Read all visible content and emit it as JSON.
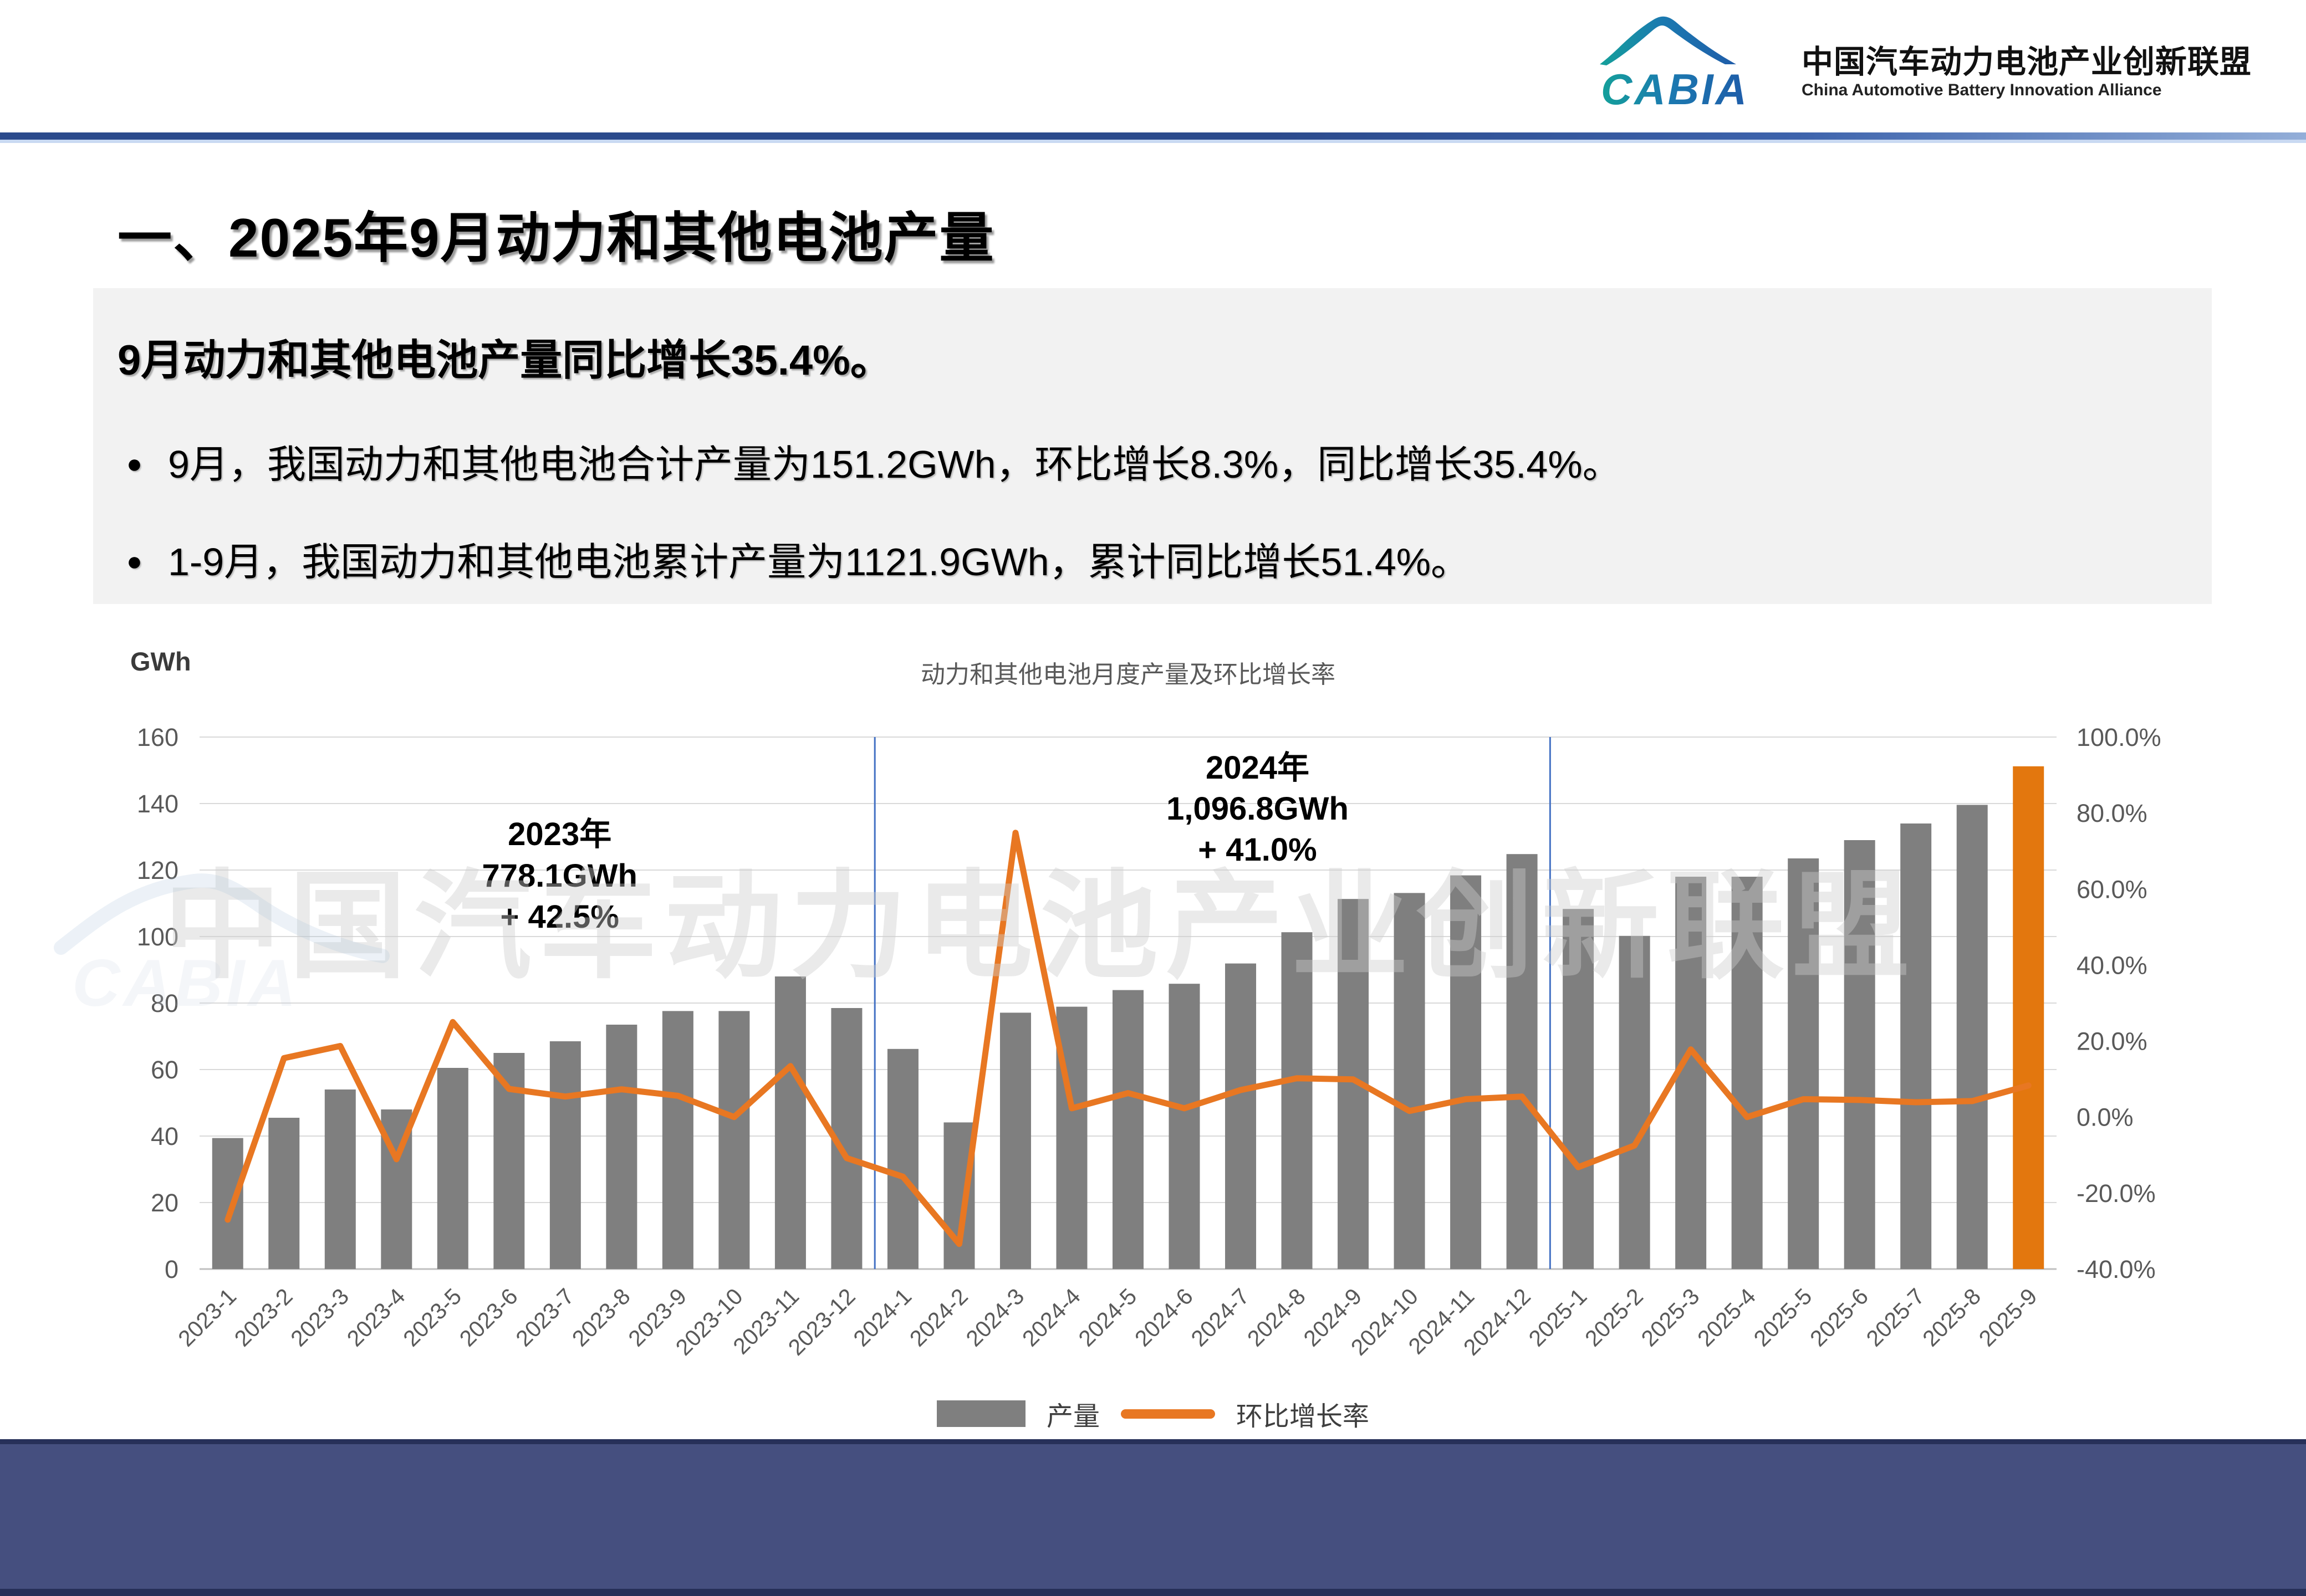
{
  "header": {
    "logo_text": "CABIA",
    "org_name_cn": "中国汽车动力电池产业创新联盟",
    "org_name_en": "China Automotive Battery Innovation Alliance"
  },
  "slide": {
    "section_title": "一、2025年9月动力和其他电池产量",
    "summary_heading": "9月动力和其他电池产量同比增长35.4%。",
    "bullet_marker": "●",
    "bullets": [
      "9月，我国动力和其他电池合计产量为151.2GWh，环比增长8.3%，同比增长35.4%。",
      "1-9月，我国动力和其他电池累计产量为1121.9GWh，累计同比增长51.4%。"
    ]
  },
  "chart_data": {
    "type": "bar+line",
    "title": "动力和其他电池月度产量及环比增长率",
    "unit_label": "GWh",
    "categories": [
      "2023-1",
      "2023-2",
      "2023-3",
      "2023-4",
      "2023-5",
      "2023-6",
      "2023-7",
      "2023-8",
      "2023-9",
      "2023-10",
      "2023-11",
      "2023-12",
      "2024-1",
      "2024-2",
      "2024-3",
      "2024-4",
      "2024-5",
      "2024-6",
      "2024-7",
      "2024-8",
      "2024-9",
      "2024-10",
      "2024-11",
      "2024-12",
      "2025-1",
      "2025-2",
      "2025-3",
      "2025-4",
      "2025-5",
      "2025-6",
      "2025-7",
      "2025-8",
      "2025-9"
    ],
    "series": [
      {
        "name": "产量",
        "type": "bar",
        "axis": "left",
        "unit": "GWh",
        "values": [
          39.4,
          45.5,
          54.0,
          48.0,
          60.5,
          65.0,
          68.5,
          73.5,
          77.6,
          77.6,
          88.0,
          78.5,
          66.2,
          44.1,
          77.1,
          78.9,
          83.9,
          85.8,
          91.9,
          101.3,
          111.3,
          113.1,
          118.4,
          124.8,
          108.3,
          100.2,
          118.0,
          118.0,
          123.5,
          129.0,
          134.0,
          139.6,
          151.2
        ]
      },
      {
        "name": "环比增长率",
        "type": "line",
        "axis": "right",
        "unit": "%",
        "values": [
          -27.0,
          15.5,
          18.7,
          -11.1,
          25.0,
          7.4,
          5.4,
          7.3,
          5.6,
          0.0,
          13.4,
          -10.8,
          -15.7,
          -33.4,
          74.8,
          2.3,
          6.3,
          2.3,
          7.1,
          10.2,
          9.9,
          1.6,
          4.7,
          5.4,
          -13.2,
          -7.5,
          17.8,
          0.0,
          4.7,
          4.5,
          3.9,
          4.2,
          8.3
        ]
      }
    ],
    "left_axis": {
      "min": 0,
      "max": 160,
      "step": 20
    },
    "right_axis": {
      "min": -40,
      "max": 100,
      "step": 20,
      "format": "percent_one_decimal"
    },
    "grid": true,
    "legend_position": "bottom",
    "year_separators_after_index": [
      11,
      23
    ],
    "highlight_index": 32,
    "annotations": [
      {
        "lines": [
          "2023年",
          "778.1GWh",
          "+ 42.5%"
        ],
        "anchor_index": 5.9,
        "row_y": [
          1525,
          1600,
          1674
        ]
      },
      {
        "lines": [
          "2024年",
          "1,096.8GWh",
          "+ 41.0%"
        ],
        "anchor_index": 18.3,
        "row_y": [
          1405,
          1479,
          1553
        ]
      }
    ],
    "watermark": "中国汽车动力电池产业创新联盟"
  },
  "colors": {
    "bar": "#7f7f7f",
    "bar_highlight": "#e3770e",
    "line": "#e87722",
    "separator": "#4472c4",
    "gridline": "#d9d9d9",
    "axis_line": "#bfbfbf",
    "axis_text": "#595959",
    "title_text": "#595959",
    "header_band": "#2b4a8c",
    "footer": "#454f7f",
    "logo_teal": "#14a09a",
    "logo_blue": "#1f5ca9"
  }
}
